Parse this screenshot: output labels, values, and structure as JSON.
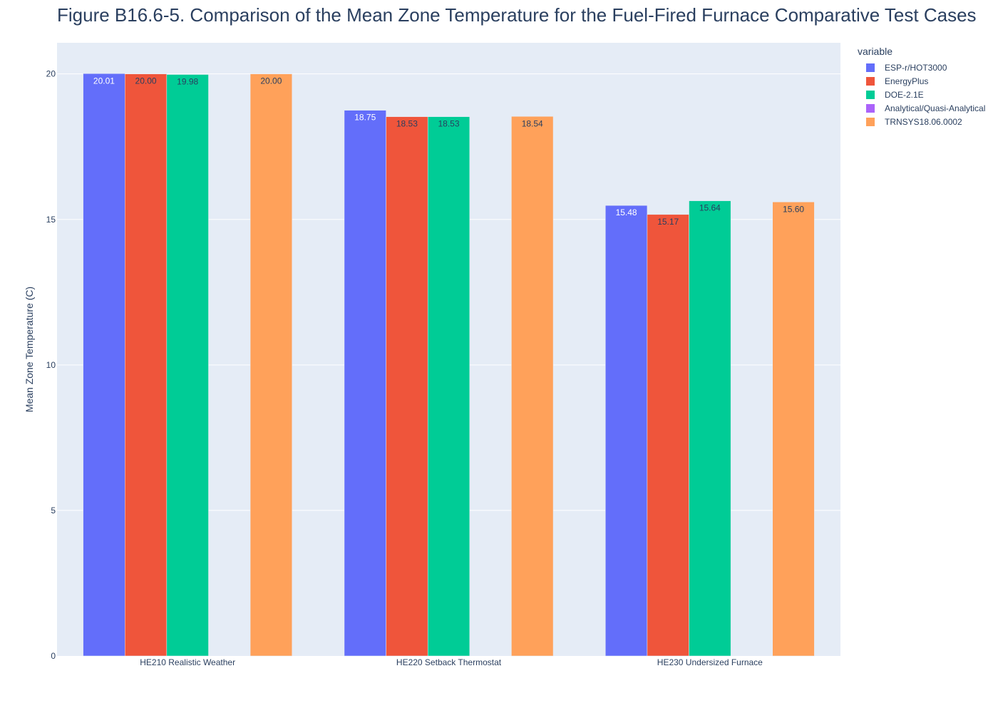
{
  "chart_data": {
    "type": "bar",
    "title": "Figure B16.6-5. Comparison of the Mean Zone Temperature for the Fuel-Fired Furnace Comparative Test Cases",
    "xlabel": "",
    "ylabel": "Mean Zone Temperature (C)",
    "ylim": [
      0,
      21.07
    ],
    "yticks": [
      0,
      5,
      10,
      15,
      20
    ],
    "grid": true,
    "legend_title": "variable",
    "legend_position": "top-right outside",
    "categories": [
      "HE210 Realistic Weather",
      "HE220 Setback Thermostat",
      "HE230 Undersized Furnace"
    ],
    "series": [
      {
        "name": "ESP-r/HOT3000",
        "color": "#636efa",
        "label_color": "#ffffff",
        "values": [
          20.01,
          18.75,
          15.48
        ],
        "labels": [
          "20.01",
          "18.75",
          "15.48"
        ]
      },
      {
        "name": "EnergyPlus",
        "color": "#ef553b",
        "label_color": "#2a3f5f",
        "values": [
          20.0,
          18.53,
          15.17
        ],
        "labels": [
          "20.00",
          "18.53",
          "15.17"
        ]
      },
      {
        "name": "DOE-2.1E",
        "color": "#00cc96",
        "label_color": "#2a3f5f",
        "values": [
          19.98,
          18.53,
          15.64
        ],
        "labels": [
          "19.98",
          "18.53",
          "15.64"
        ]
      },
      {
        "name": "Analytical/Quasi-Analytical",
        "color": "#ab63fa",
        "label_color": "#2a3f5f",
        "values": [
          null,
          null,
          null
        ],
        "labels": [
          null,
          null,
          null
        ]
      },
      {
        "name": "TRNSYS18.06.0002",
        "color": "#ffa15a",
        "label_color": "#2a3f5f",
        "values": [
          20.0,
          18.54,
          15.6
        ],
        "labels": [
          "20.00",
          "18.54",
          "15.60"
        ]
      }
    ]
  }
}
